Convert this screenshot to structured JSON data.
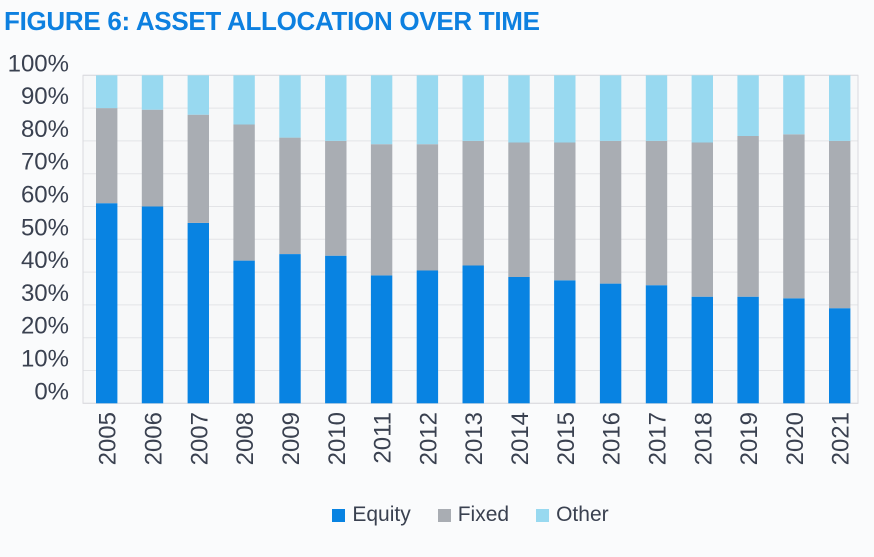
{
  "title": "FIGURE 6: ASSET ALLOCATION OVER TIME",
  "colors": {
    "title_text": "#0d80e0",
    "axis_text": "#3a4150",
    "gridline": "#e3e4e7",
    "plot_border": "#d9dade",
    "plot_background": "#f7f8f9",
    "page_background": "#fafbfc",
    "equity": "#0883e2",
    "fixed": "#a9adb3",
    "other": "#98d9f0"
  },
  "chart_data": {
    "type": "bar",
    "stacked": true,
    "stacked_total": 100,
    "title": "FIGURE 6: ASSET ALLOCATION OVER TIME",
    "xlabel": "",
    "ylabel": "",
    "ylim": [
      0,
      100
    ],
    "grid": true,
    "legend_position": "bottom",
    "y_tick_labels": [
      "0%",
      "10%",
      "20%",
      "30%",
      "40%",
      "50%",
      "60%",
      "70%",
      "80%",
      "90%",
      "100%"
    ],
    "categories": [
      "2005",
      "2006",
      "2007",
      "2008",
      "2009",
      "2010",
      "2011",
      "2012",
      "2013",
      "2014",
      "2015",
      "2016",
      "2017",
      "2018",
      "2019",
      "2020",
      "2021"
    ],
    "series": [
      {
        "name": "Equity",
        "color": "#0883e2",
        "values": [
          61,
          60,
          55,
          43.5,
          45.5,
          45,
          39,
          40.5,
          42,
          38.5,
          37.5,
          36.5,
          36,
          32.5,
          32.5,
          32,
          29
        ]
      },
      {
        "name": "Fixed",
        "color": "#a9adb3",
        "values": [
          29,
          29.5,
          33,
          41.5,
          35.5,
          35,
          40,
          38.5,
          38,
          41,
          42,
          43.5,
          44,
          47,
          49,
          50,
          51
        ]
      },
      {
        "name": "Other",
        "color": "#98d9f0",
        "values": [
          10,
          10.5,
          12,
          15,
          19,
          20,
          21,
          21,
          20,
          20.5,
          20.5,
          20,
          20,
          20.5,
          18.5,
          18,
          20
        ]
      }
    ]
  }
}
